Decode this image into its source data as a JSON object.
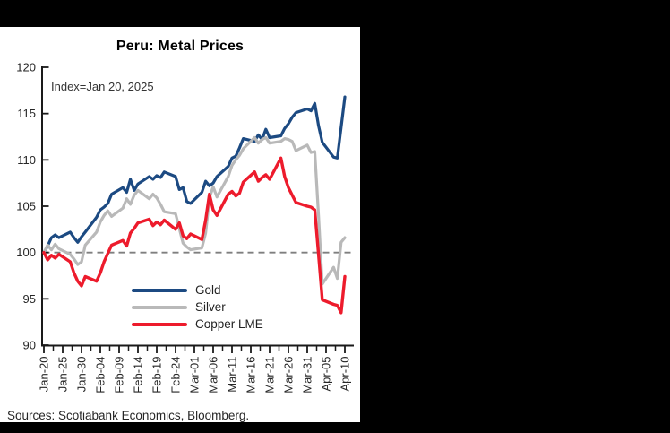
{
  "window": {
    "background": "#000000",
    "panel_background": "#ffffff"
  },
  "chart_data": {
    "type": "line",
    "title": "Peru: Metal Prices",
    "annotation": "Index=Jan 20, 2025",
    "source": "Sources: Scotiabank Economics, Bloomberg.",
    "y_axis": {
      "min": 90,
      "max": 120,
      "tick_step": 5,
      "ticks": [
        120,
        115,
        110,
        105,
        100,
        95,
        90
      ]
    },
    "x_axis": {
      "tick_labels": [
        "Jan-20",
        "Jan-25",
        "Jan-30",
        "Feb-04",
        "Feb-09",
        "Feb-14",
        "Feb-19",
        "Feb-24",
        "Mar-01",
        "Mar-06",
        "Mar-11",
        "Mar-16",
        "Mar-21",
        "Mar-26",
        "Mar-31",
        "Apr-05",
        "Apr-10"
      ],
      "days_per_major_tick": 5,
      "minor_ticks_between_majors": true,
      "total_days": 80
    },
    "reference_line": {
      "value": 100,
      "style": "dashed",
      "color": "#7f7f7f"
    },
    "dates": [
      "Jan-20",
      "Jan-21",
      "Jan-22",
      "Jan-23",
      "Jan-24",
      "Jan-27",
      "Jan-28",
      "Jan-29",
      "Jan-30",
      "Jan-31",
      "Feb-03",
      "Feb-04",
      "Feb-05",
      "Feb-06",
      "Feb-07",
      "Feb-10",
      "Feb-11",
      "Feb-12",
      "Feb-13",
      "Feb-14",
      "Feb-17",
      "Feb-18",
      "Feb-19",
      "Feb-20",
      "Feb-21",
      "Feb-24",
      "Feb-25",
      "Feb-26",
      "Feb-27",
      "Feb-28",
      "Mar-03",
      "Mar-04",
      "Mar-05",
      "Mar-06",
      "Mar-07",
      "Mar-10",
      "Mar-11",
      "Mar-12",
      "Mar-13",
      "Mar-14",
      "Mar-17",
      "Mar-18",
      "Mar-19",
      "Mar-20",
      "Mar-21",
      "Mar-24",
      "Mar-25",
      "Mar-26",
      "Mar-27",
      "Mar-28",
      "Mar-31",
      "Apr-01",
      "Apr-02",
      "Apr-03",
      "Apr-04",
      "Apr-07",
      "Apr-08",
      "Apr-09",
      "Apr-10"
    ],
    "day_offsets": [
      0,
      1,
      2,
      3,
      4,
      7,
      8,
      9,
      10,
      11,
      14,
      15,
      16,
      17,
      18,
      21,
      22,
      23,
      24,
      25,
      28,
      29,
      30,
      31,
      32,
      35,
      36,
      37,
      38,
      39,
      42,
      43,
      44,
      45,
      46,
      49,
      50,
      51,
      52,
      53,
      56,
      57,
      58,
      59,
      60,
      63,
      64,
      65,
      66,
      67,
      70,
      71,
      72,
      73,
      74,
      77,
      78,
      79,
      80
    ],
    "series": [
      {
        "name": "Gold",
        "color": "#1c4a82",
        "values": [
          100.0,
          100.7,
          101.6,
          101.9,
          101.6,
          102.2,
          101.6,
          101.1,
          101.7,
          102.2,
          103.8,
          104.6,
          104.9,
          105.3,
          106.3,
          107.0,
          106.5,
          107.9,
          106.7,
          107.4,
          108.2,
          107.9,
          108.3,
          108.1,
          108.7,
          108.2,
          106.8,
          107.0,
          105.5,
          105.3,
          106.5,
          107.7,
          107.2,
          107.5,
          108.2,
          109.3,
          110.2,
          110.4,
          111.3,
          112.3,
          112.0,
          112.7,
          112.2,
          113.3,
          112.4,
          112.6,
          113.4,
          113.9,
          114.6,
          115.1,
          115.5,
          115.3,
          116.1,
          113.7,
          111.9,
          110.3,
          110.2,
          113.5,
          116.8
        ]
      },
      {
        "name": "Silver",
        "color": "#b9b9b9",
        "values": [
          100.0,
          100.8,
          100.3,
          100.9,
          100.4,
          99.8,
          99.3,
          98.7,
          99.0,
          100.8,
          102.2,
          103.3,
          104.0,
          104.5,
          103.9,
          104.8,
          105.8,
          105.2,
          106.2,
          106.7,
          105.8,
          106.3,
          105.9,
          105.2,
          104.4,
          104.2,
          102.6,
          101.0,
          100.6,
          100.3,
          100.5,
          102.1,
          105.9,
          107.1,
          106.0,
          108.2,
          109.4,
          110.0,
          110.5,
          111.2,
          112.4,
          111.8,
          112.2,
          112.4,
          111.8,
          112.0,
          112.3,
          112.2,
          112.0,
          111.0,
          111.6,
          110.8,
          110.9,
          104.0,
          96.6,
          98.4,
          97.2,
          101.1,
          101.6
        ]
      },
      {
        "name": "Copper LME",
        "color": "#ed1b2c",
        "values": [
          100.0,
          99.2,
          99.7,
          99.4,
          99.8,
          99.0,
          97.8,
          96.9,
          96.4,
          97.4,
          96.9,
          97.8,
          99.0,
          99.9,
          100.8,
          101.3,
          100.7,
          102.1,
          102.6,
          103.2,
          103.6,
          102.9,
          103.3,
          103.0,
          103.5,
          102.5,
          103.2,
          101.8,
          101.5,
          102.0,
          101.4,
          103.5,
          106.3,
          104.6,
          104.0,
          106.3,
          106.6,
          106.1,
          106.4,
          107.6,
          108.7,
          107.7,
          108.1,
          108.4,
          107.9,
          110.2,
          108.2,
          107.0,
          106.2,
          105.4,
          105.0,
          104.9,
          104.6,
          99.8,
          94.9,
          94.4,
          94.3,
          93.5,
          97.4
        ]
      }
    ],
    "legend": {
      "position": "lower-left-inside",
      "entries": [
        "Gold",
        "Silver",
        "Copper LME"
      ]
    }
  }
}
